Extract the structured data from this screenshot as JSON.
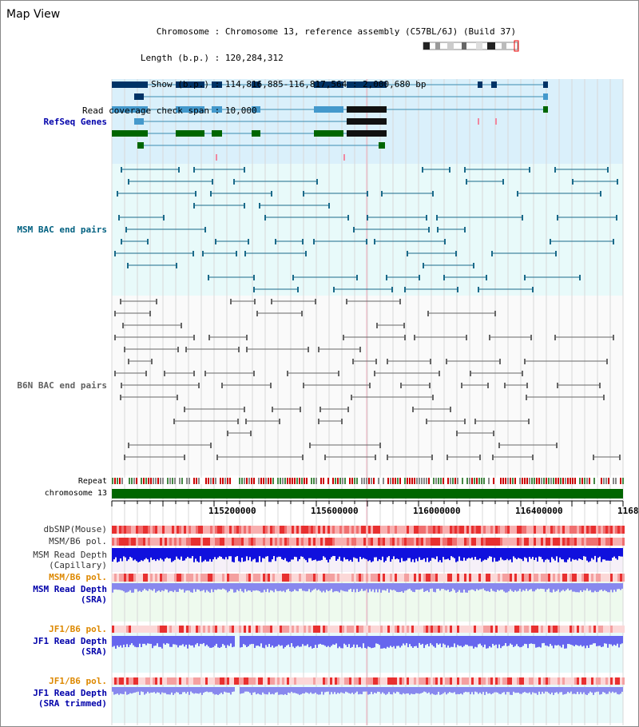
{
  "title": "Map View",
  "info": {
    "chromosome_key": "Chromosome",
    "chromosome_val": "Chromosome 13, reference assembly (C57BL/6J) (Build 37)",
    "length_key": "Length (b.p.)",
    "length_val": "120,284,312",
    "show_key": "Show (b.p.)",
    "show_val": "114,816,885-116,817,564 : 2,000,680 bp",
    "coverage_key": "Read coverage check span",
    "coverage_val": "10,000"
  },
  "tracks": {
    "refseq": "RefSeq Genes",
    "msm_bac": "MSM BAC end pairs",
    "b6n_bac": "B6N BAC end pairs",
    "repeat": "Repeat",
    "chromosome": "chromosome 13",
    "dbsnp": "dbSNP(Mouse)",
    "msm_b6_pol_1": "MSM/B6 pol.",
    "msm_read_depth_cap_1": "MSM Read Depth",
    "msm_read_depth_cap_2": "(Capillary)",
    "msm_b6_pol_2": "MSM/B6 pol.",
    "msm_read_depth_sra_1": "MSM Read Depth",
    "msm_read_depth_sra_2": "(SRA)",
    "jf1_b6_pol_1": "JF1/B6 pol.",
    "jf1_read_depth_sra_1": "JF1 Read Depth",
    "jf1_read_depth_sra_2": "(SRA)",
    "jf1_b6_pol_2": "JF1/B6 pol.",
    "jf1_read_depth_trim_1": "JF1 Read Depth",
    "jf1_read_depth_trim_2": "(SRA trimmed)"
  },
  "axis_ticks": [
    "115200000",
    "115600000",
    "116000000",
    "116400000",
    "1168"
  ],
  "colors": {
    "refseq_bg": "#daf0fb",
    "msm_bg": "#e8fafa",
    "b6n_bg": "#fafafa",
    "refseq_label": "#0000aa",
    "msm_label": "#006080",
    "b6n_label": "#606060",
    "pol_orange": "#dd8800",
    "depth_blue": "#0000cc",
    "gene_dark": "#003366",
    "gene_mid": "#4499cc",
    "gene_green": "#006600",
    "msm_feature": "#1a6a8a",
    "b6n_feature": "#666666"
  }
}
